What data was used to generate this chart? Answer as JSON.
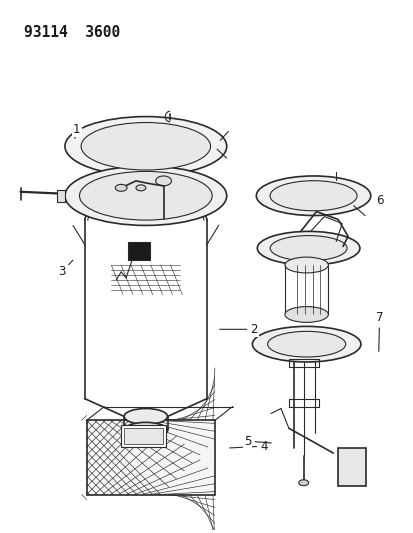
{
  "title": "93114  3600",
  "bg_color": "#ffffff",
  "line_color": "#2a2a2a",
  "label_color": "#1a1a1a",
  "label_fontsize": 8.5,
  "title_fontsize": 10.5
}
